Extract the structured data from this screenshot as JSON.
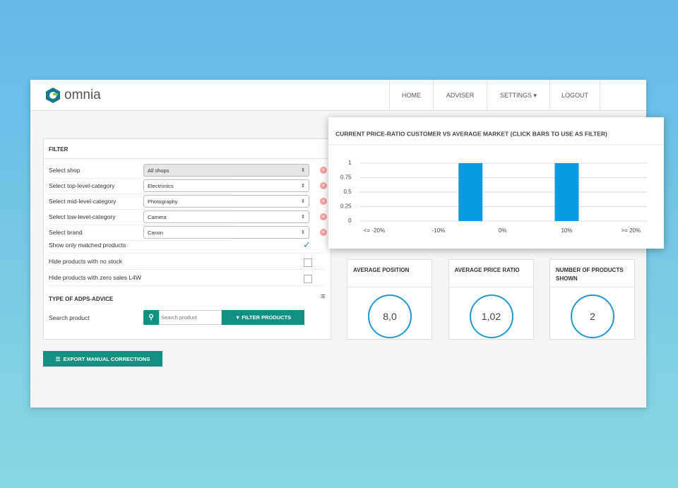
{
  "header": {
    "brand": "omnia",
    "nav": [
      "HOME",
      "ADVISER",
      "SETTINGS",
      "LOGOUT"
    ]
  },
  "filter": {
    "title": "FILTER",
    "rows": [
      {
        "label": "Select shop",
        "value": "All shops"
      },
      {
        "label": "Select top-level-category",
        "value": "Electronics"
      },
      {
        "label": "Select mid-level-category",
        "value": "Photography"
      },
      {
        "label": "Select low-level-category",
        "value": "Camera"
      },
      {
        "label": "Select brand",
        "value": "Canon"
      }
    ],
    "checks": [
      {
        "label": "Show only matched products",
        "checked": true
      },
      {
        "label": "Hide products with no stock",
        "checked": false
      },
      {
        "label": "Hide products with zero sales L4W",
        "checked": false
      }
    ],
    "advice_title": "TYPE OF ADPS-ADVICE",
    "search_label": "Search product",
    "search_placeholder": "Search product",
    "filter_button": "FILTER PRODUCTS"
  },
  "export_button": "EXPORT MANUAL CORRECTIONS",
  "chart_data": {
    "type": "bar",
    "title": "CURRENT PRICE-RATIO CUSTOMER VS AVERAGE MARKET (CLICK BARS TO USE AS FILTER)",
    "x": [
      -5,
      10
    ],
    "values": [
      1,
      1
    ],
    "color": "#0a9be3",
    "xlim": [
      -25,
      22.5
    ],
    "xticks": [
      {
        "value": -20,
        "label": "<= -20%"
      },
      {
        "value": -10,
        "label": "-10%"
      },
      {
        "value": 0,
        "label": "0%"
      },
      {
        "value": 10,
        "label": "10%"
      },
      {
        "value": 20,
        "label": ">= 20%"
      }
    ],
    "ylim": [
      0,
      1
    ],
    "yticks": [
      0,
      0.25,
      0.5,
      0.75,
      1
    ],
    "grid": true
  },
  "stats": [
    {
      "title": "AVERAGE POSITION",
      "value": "8,0"
    },
    {
      "title": "AVERAGE PRICE RATIO",
      "value": "1,02"
    },
    {
      "title": "NUMBER OF PRODUCTS SHOWN",
      "value": "2"
    }
  ]
}
